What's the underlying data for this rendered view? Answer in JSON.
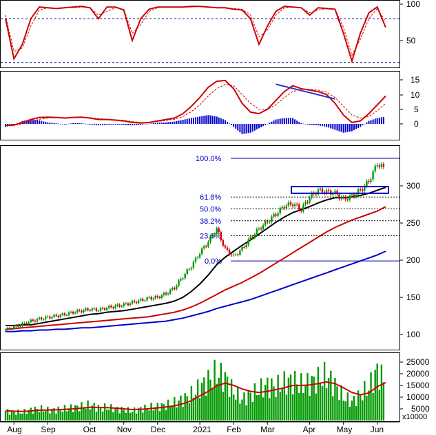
{
  "chart_data": [
    {
      "type": "line",
      "panel": "oscillator",
      "ylim": [
        0,
        110
      ],
      "y_ticks": [
        "100",
        "50"
      ],
      "y_tick_values": [
        100,
        50
      ],
      "reference_levels": [
        80,
        20
      ],
      "colors": {
        "fast": "#cc0000",
        "slow": "#cc0000",
        "reference": "#000080"
      },
      "x": [
        "Jul-29",
        "Aug-05",
        "Aug-12",
        "Aug-19",
        "Aug-26",
        "Sep-02",
        "Sep-09",
        "Sep-16",
        "Sep-23",
        "Sep-30",
        "Oct-07",
        "Oct-14",
        "Oct-21",
        "Oct-28",
        "Nov-04",
        "Nov-11",
        "Nov-18",
        "Nov-25",
        "Dec-02",
        "Dec-09",
        "Dec-16",
        "Dec-23",
        "Dec-30",
        "Jan-06",
        "Jan-13",
        "Jan-20",
        "Jan-27",
        "Feb-03",
        "Feb-10",
        "Feb-17",
        "Feb-24",
        "Mar-03",
        "Mar-10",
        "Mar-17",
        "Mar-24",
        "Mar-31",
        "Apr-07",
        "Apr-14",
        "Apr-21",
        "Apr-28",
        "May-05",
        "May-12",
        "May-19",
        "May-26",
        "Jun-02",
        "Jun-09"
      ],
      "series": [
        {
          "values": [
            80,
            25,
            45,
            80,
            96,
            95,
            94,
            95,
            96,
            97,
            95,
            80,
            96,
            96,
            92,
            50,
            80,
            93,
            96,
            96,
            96,
            96,
            97,
            97,
            96,
            95,
            95,
            93,
            92,
            80,
            45,
            70,
            90,
            97,
            96,
            95,
            85,
            95,
            94,
            93,
            60,
            22,
            60,
            88,
            96,
            68
          ]
        },
        {
          "values": [
            85,
            35,
            40,
            70,
            92,
            95,
            94,
            95,
            95,
            96,
            95,
            85,
            90,
            95,
            93,
            60,
            72,
            90,
            95,
            96,
            96,
            96,
            96,
            97,
            96,
            95,
            95,
            94,
            93,
            85,
            55,
            65,
            85,
            95,
            96,
            95,
            88,
            92,
            94,
            93,
            68,
            30,
            52,
            80,
            94,
            76
          ]
        }
      ]
    },
    {
      "type": "line",
      "panel": "macd",
      "ylim": [
        -3,
        17
      ],
      "y_ticks": [
        "15",
        "10",
        "5",
        "0"
      ],
      "y_tick_values": [
        15,
        10,
        5,
        0
      ],
      "colors": {
        "macd": "#cc0000",
        "signal": "#cc0000",
        "histogram": "#0000cc",
        "trendline": "#3333cc"
      },
      "x": [
        "Jul-29",
        "Aug-05",
        "Aug-12",
        "Aug-19",
        "Aug-26",
        "Sep-02",
        "Sep-09",
        "Sep-16",
        "Sep-23",
        "Sep-30",
        "Oct-07",
        "Oct-14",
        "Oct-21",
        "Oct-28",
        "Nov-04",
        "Nov-11",
        "Nov-18",
        "Nov-25",
        "Dec-02",
        "Dec-09",
        "Dec-16",
        "Dec-23",
        "Dec-30",
        "Jan-06",
        "Jan-13",
        "Jan-20",
        "Jan-27",
        "Feb-03",
        "Feb-10",
        "Feb-17",
        "Feb-24",
        "Mar-03",
        "Mar-10",
        "Mar-17",
        "Mar-24",
        "Mar-31",
        "Apr-07",
        "Apr-14",
        "Apr-21",
        "Apr-28",
        "May-05",
        "May-12",
        "May-19",
        "May-26",
        "Jun-02",
        "Jun-09"
      ],
      "series": [
        {
          "values": [
            -0.5,
            -0.4,
            0.5,
            1.5,
            2.2,
            2.3,
            2.2,
            2.0,
            2.2,
            2.3,
            2.0,
            1.5,
            1.5,
            1.3,
            1.0,
            0.5,
            0.3,
            0.5,
            1.0,
            1.5,
            2.0,
            3.5,
            6.0,
            9.0,
            12.5,
            14.5,
            14.8,
            12.0,
            7.0,
            4.0,
            3.5,
            5.0,
            8.0,
            11.0,
            13.0,
            12.0,
            11.5,
            11.0,
            10.0,
            7.0,
            3.0,
            0.5,
            1.0,
            3.5,
            6.5,
            9.5
          ]
        },
        {
          "values": [
            -0.5,
            -0.5,
            0.0,
            0.8,
            1.6,
            2.0,
            2.1,
            2.1,
            2.1,
            2.2,
            2.1,
            1.8,
            1.6,
            1.4,
            1.2,
            0.8,
            0.5,
            0.5,
            0.8,
            1.2,
            1.6,
            2.5,
            4.2,
            6.5,
            9.5,
            12.0,
            13.5,
            13.0,
            10.0,
            7.0,
            5.0,
            5.0,
            6.5,
            9.0,
            11.0,
            11.8,
            11.8,
            11.5,
            10.8,
            9.0,
            6.0,
            3.0,
            2.0,
            2.5,
            4.5,
            7.0
          ]
        },
        {
          "values": [
            -1.0,
            -0.5,
            1.0,
            1.4,
            1.2,
            0.5,
            0.2,
            -0.2,
            0.3,
            0.2,
            -0.2,
            -0.5,
            -0.3,
            -0.2,
            -0.3,
            -0.5,
            -0.3,
            0.1,
            0.4,
            0.5,
            0.8,
            1.4,
            2.0,
            2.5,
            3.0,
            2.5,
            1.3,
            -1.0,
            -3.5,
            -3.0,
            -1.5,
            0.0,
            1.5,
            2.0,
            2.0,
            0.2,
            -0.3,
            -0.5,
            -1.0,
            -2.0,
            -3.0,
            -2.5,
            -1.0,
            1.0,
            2.0,
            2.5
          ]
        }
      ],
      "trendline": {
        "from": {
          "x": "Mar-10",
          "y": 13.5
        },
        "to": {
          "x": "Apr-28",
          "y": 8.5
        }
      }
    },
    {
      "type": "candlestick",
      "panel": "price",
      "ylim": [
        80,
        345
      ],
      "y_ticks": [
        "300",
        "250",
        "200",
        "150",
        "100"
      ],
      "y_tick_values": [
        300,
        250,
        200,
        150,
        100
      ],
      "colors": {
        "up": "#009900",
        "down": "#cc0000",
        "ma_short": "#000000",
        "ma_mid": "#cc0000",
        "ma_long": "#0000cc",
        "fibonacci": "#0000c8"
      },
      "x": [
        "Jul-29",
        "Aug-05",
        "Aug-12",
        "Aug-19",
        "Aug-26",
        "Sep-02",
        "Sep-09",
        "Sep-16",
        "Sep-23",
        "Sep-30",
        "Oct-07",
        "Oct-14",
        "Oct-21",
        "Oct-28",
        "Nov-04",
        "Nov-11",
        "Nov-18",
        "Nov-25",
        "Dec-02",
        "Dec-09",
        "Dec-16",
        "Dec-23",
        "Dec-30",
        "Jan-06",
        "Jan-13",
        "Jan-20",
        "Jan-27",
        "Feb-03",
        "Feb-10",
        "Feb-17",
        "Feb-24",
        "Mar-03",
        "Mar-10",
        "Mar-17",
        "Mar-24",
        "Mar-31",
        "Apr-07",
        "Apr-14",
        "Apr-21",
        "Apr-28",
        "May-05",
        "May-12",
        "May-19",
        "May-26",
        "Jun-02",
        "Jun-09"
      ],
      "close": [
        106,
        110,
        114,
        118,
        121,
        123,
        125,
        127,
        130,
        132,
        134,
        133,
        136,
        138,
        140,
        143,
        146,
        149,
        150,
        155,
        163,
        178,
        192,
        210,
        225,
        242,
        215,
        205,
        215,
        230,
        242,
        252,
        262,
        273,
        276,
        268,
        285,
        294,
        292,
        290,
        282,
        286,
        294,
        306,
        330,
        322
      ],
      "moving_averages": [
        {
          "values": [
            112,
            112,
            113,
            113,
            115,
            117,
            119,
            121,
            123,
            125,
            127,
            128,
            130,
            131,
            132,
            134,
            136,
            138,
            140,
            142,
            145,
            150,
            158,
            168,
            180,
            194,
            204,
            212,
            220,
            227,
            235,
            243,
            251,
            258,
            264,
            268,
            272,
            277,
            281,
            284,
            284,
            285,
            287,
            290,
            294,
            298
          ]
        },
        {
          "values": [
            107,
            108,
            109,
            110,
            111,
            112,
            113,
            114,
            115,
            116,
            117,
            118,
            119,
            120,
            121,
            122,
            123,
            124,
            126,
            128,
            130,
            133,
            137,
            142,
            148,
            154,
            160,
            165,
            170,
            176,
            182,
            189,
            196,
            203,
            210,
            217,
            224,
            231,
            238,
            244,
            249,
            254,
            258,
            262,
            266,
            272
          ]
        },
        {
          "values": [
            104,
            104,
            105,
            105,
            106,
            106,
            107,
            107,
            108,
            109,
            109,
            110,
            111,
            112,
            113,
            114,
            115,
            116,
            117,
            118,
            120,
            122,
            125,
            128,
            131,
            135,
            138,
            141,
            144,
            147,
            151,
            155,
            159,
            163,
            167,
            171,
            175,
            179,
            183,
            187,
            191,
            195,
            199,
            203,
            207,
            212
          ]
        }
      ],
      "fibonacci_levels": [
        {
          "label": "100.0%",
          "value": 337
        },
        {
          "label": "61.8%",
          "value": 285
        },
        {
          "label": "50.0%",
          "value": 269
        },
        {
          "label": "38.2%",
          "value": 253
        },
        {
          "label": "23.6%",
          "value": 233
        },
        {
          "label": "0.0%",
          "value": 199
        }
      ],
      "range_box": {
        "from": "Mar-24",
        "to": "Jun-09",
        "low": 290,
        "high": 299
      }
    },
    {
      "type": "bar",
      "panel": "volume",
      "ylim": [
        0,
        27000
      ],
      "y_ticks": [
        "25000",
        "20000",
        "15000",
        "10000",
        "5000"
      ],
      "y_tick_values": [
        25000,
        20000,
        15000,
        10000,
        5000
      ],
      "unit_label": "x10000",
      "colors": {
        "bars": "#009900",
        "average": "#cc0000"
      },
      "x": [
        "Jul-29",
        "Aug-05",
        "Aug-12",
        "Aug-19",
        "Aug-26",
        "Sep-02",
        "Sep-09",
        "Sep-16",
        "Sep-23",
        "Sep-30",
        "Oct-07",
        "Oct-14",
        "Oct-21",
        "Oct-28",
        "Nov-04",
        "Nov-11",
        "Nov-18",
        "Nov-25",
        "Dec-02",
        "Dec-09",
        "Dec-16",
        "Dec-23",
        "Dec-30",
        "Jan-06",
        "Jan-13",
        "Jan-20",
        "Jan-27",
        "Feb-03",
        "Feb-10",
        "Feb-17",
        "Feb-24",
        "Mar-03",
        "Mar-10",
        "Mar-17",
        "Mar-24",
        "Mar-31",
        "Apr-07",
        "Apr-14",
        "Apr-21",
        "Apr-28",
        "May-05",
        "May-12",
        "May-19",
        "May-26",
        "Jun-02",
        "Jun-09"
      ],
      "values": [
        4000,
        3500,
        3500,
        4500,
        5000,
        4500,
        4500,
        5000,
        5500,
        6000,
        6500,
        5500,
        5500,
        5000,
        4500,
        4000,
        5000,
        5500,
        6000,
        6500,
        7500,
        9000,
        11000,
        14000,
        17000,
        20000,
        18000,
        12000,
        9000,
        11000,
        13000,
        15000,
        14000,
        16000,
        17000,
        15000,
        16000,
        17500,
        19000,
        15000,
        10000,
        8000,
        11000,
        14000,
        21000,
        16000
      ],
      "average": [
        4200,
        4000,
        3900,
        4100,
        4400,
        4500,
        4600,
        4800,
        5000,
        5300,
        5700,
        5600,
        5500,
        5300,
        5000,
        4700,
        4800,
        5100,
        5400,
        5800,
        6300,
        7200,
        8500,
        10500,
        12500,
        14800,
        16000,
        15000,
        13500,
        12500,
        12000,
        12500,
        13200,
        14000,
        15000,
        15000,
        15200,
        15800,
        16500,
        15800,
        14000,
        12000,
        11000,
        11800,
        14500,
        16200
      ]
    },
    {
      "type": "axis",
      "x_labels": [
        "Aug",
        "Sep",
        "Oct",
        "Nov",
        "Dec",
        "2021",
        "Feb",
        "Mar",
        "Apr",
        "May",
        "Jun"
      ],
      "x_label_positions": [
        "Aug-05",
        "Sep-02",
        "Oct-07",
        "Nov-04",
        "Dec-02",
        "Jan-06",
        "Feb-03",
        "Mar-03",
        "Apr-07",
        "May-05",
        "Jun-02"
      ]
    }
  ]
}
